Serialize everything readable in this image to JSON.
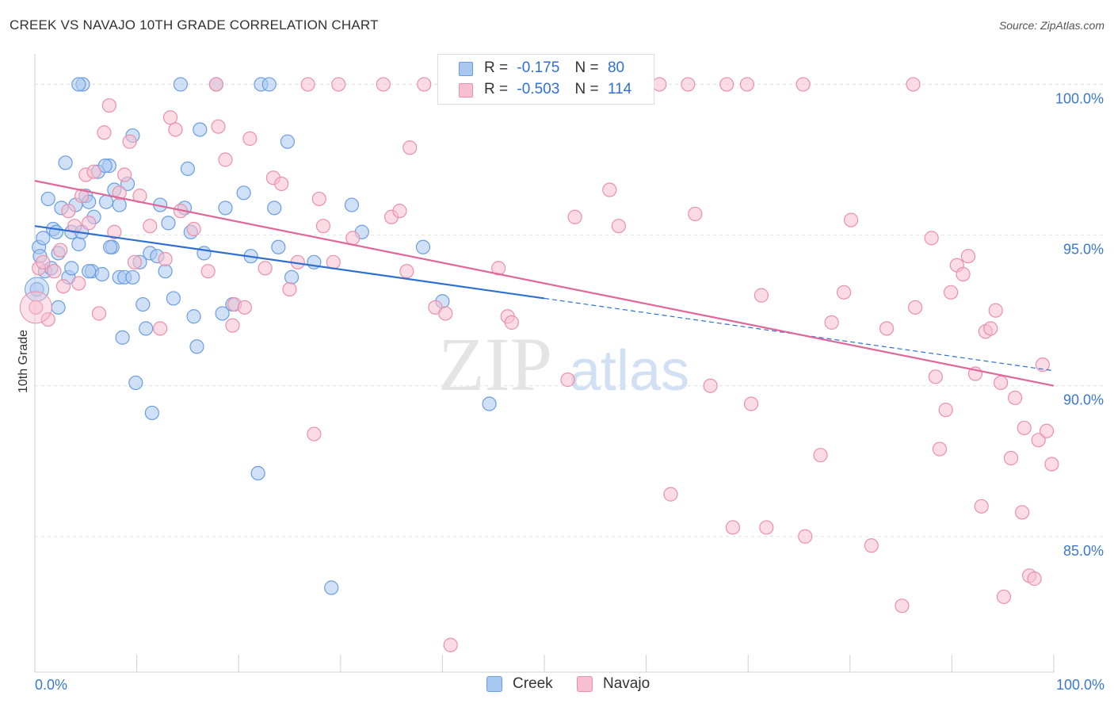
{
  "header": {
    "title": "CREEK VS NAVAJO 10TH GRADE CORRELATION CHART",
    "source": "Source: ZipAtlas.com"
  },
  "watermark": {
    "zip": "ZIP",
    "atlas": "atlas"
  },
  "legend_top": {
    "rows": [
      {
        "r_label": "R =",
        "r_value": "-0.175",
        "n_label": "N =",
        "n_value": "80"
      },
      {
        "r_label": "R =",
        "r_value": "-0.503",
        "n_label": "N =",
        "n_value": "114"
      }
    ]
  },
  "legend_bottom": {
    "items": [
      "Creek",
      "Navajo"
    ]
  },
  "colors": {
    "creek_fill": "#a9c8f0",
    "creek_stroke": "#6a9de0",
    "creek_line": "#2e6fd2",
    "navajo_fill": "#f7bfd0",
    "navajo_stroke": "#ea8fac",
    "navajo_line": "#e0679a",
    "axis_label": "#3a78d0",
    "grid": "#e2e2e2"
  },
  "chart_data": {
    "type": "scatter",
    "title": "CREEK VS NAVAJO 10TH GRADE CORRELATION CHART",
    "xlabel": "",
    "ylabel": "10th Grade",
    "xlim": [
      0,
      100
    ],
    "ylim": [
      80.5,
      100.8
    ],
    "x_tick_labels": [
      "0.0%",
      "100.0%"
    ],
    "y_ticks": [
      85,
      90,
      95,
      100
    ],
    "y_tick_labels": [
      "85.0%",
      "90.0%",
      "95.0%",
      "100.0%"
    ],
    "grid": true,
    "series": [
      {
        "name": "Creek",
        "r": -0.175,
        "n": 80,
        "trend": {
          "x": [
            0,
            50
          ],
          "y": [
            95.3,
            92.9
          ],
          "dashed_to": [
            100,
            90.5
          ]
        },
        "points": [
          [
            0.2,
            93.2
          ],
          [
            0.4,
            94.6
          ],
          [
            0.5,
            94.3
          ],
          [
            0.8,
            94.9
          ],
          [
            1.0,
            93.8
          ],
          [
            1.3,
            96.2
          ],
          [
            1.6,
            93.9
          ],
          [
            1.8,
            95.2
          ],
          [
            2.1,
            95.1
          ],
          [
            2.3,
            92.6
          ],
          [
            2.6,
            95.9
          ],
          [
            3.0,
            97.4
          ],
          [
            3.3,
            93.6
          ],
          [
            3.6,
            95.1
          ],
          [
            4.0,
            96.0
          ],
          [
            4.3,
            94.7
          ],
          [
            4.6,
            95.1
          ],
          [
            4.7,
            100.0
          ],
          [
            5.0,
            96.3
          ],
          [
            5.3,
            96.1
          ],
          [
            5.6,
            93.8
          ],
          [
            5.8,
            95.6
          ],
          [
            6.2,
            97.1
          ],
          [
            6.6,
            93.7
          ],
          [
            7.0,
            96.1
          ],
          [
            7.3,
            97.3
          ],
          [
            7.6,
            94.6
          ],
          [
            7.8,
            96.5
          ],
          [
            8.3,
            93.6
          ],
          [
            8.6,
            91.6
          ],
          [
            8.8,
            93.6
          ],
          [
            9.1,
            96.7
          ],
          [
            9.6,
            98.3
          ],
          [
            9.9,
            90.1
          ],
          [
            10.3,
            94.1
          ],
          [
            10.6,
            92.7
          ],
          [
            10.9,
            91.9
          ],
          [
            11.3,
            94.4
          ],
          [
            11.5,
            89.1
          ],
          [
            12.3,
            96.0
          ],
          [
            12.8,
            93.8
          ],
          [
            13.1,
            95.4
          ],
          [
            13.6,
            92.9
          ],
          [
            14.3,
            100.0
          ],
          [
            14.7,
            95.9
          ],
          [
            15.0,
            97.2
          ],
          [
            15.6,
            92.3
          ],
          [
            15.9,
            91.3
          ],
          [
            16.2,
            98.5
          ],
          [
            16.6,
            94.4
          ],
          [
            17.8,
            100.0
          ],
          [
            18.4,
            92.4
          ],
          [
            18.7,
            95.9
          ],
          [
            19.4,
            92.7
          ],
          [
            20.5,
            96.4
          ],
          [
            21.2,
            94.3
          ],
          [
            21.9,
            87.1
          ],
          [
            22.2,
            100.0
          ],
          [
            23.0,
            100.0
          ],
          [
            23.5,
            95.9
          ],
          [
            23.9,
            94.6
          ],
          [
            24.8,
            98.1
          ],
          [
            25.2,
            93.6
          ],
          [
            27.4,
            94.1
          ],
          [
            29.1,
            83.3
          ],
          [
            31.1,
            96.0
          ],
          [
            32.1,
            95.1
          ],
          [
            38.1,
            94.6
          ],
          [
            40.0,
            92.8
          ],
          [
            44.6,
            89.4
          ],
          [
            6.9,
            97.3
          ],
          [
            3.6,
            93.9
          ],
          [
            9.6,
            93.6
          ],
          [
            5.3,
            93.8
          ],
          [
            2.3,
            94.4
          ],
          [
            4.3,
            100.0
          ],
          [
            7.4,
            94.6
          ],
          [
            12.0,
            94.3
          ],
          [
            15.3,
            95.1
          ],
          [
            8.3,
            96.0
          ]
        ]
      },
      {
        "name": "Navajo",
        "r": -0.503,
        "n": 114,
        "trend": {
          "x": [
            0,
            100
          ],
          "y": [
            96.8,
            90.0
          ]
        },
        "points": [
          [
            0.1,
            92.6
          ],
          [
            0.4,
            93.9
          ],
          [
            1.3,
            92.2
          ],
          [
            1.9,
            93.8
          ],
          [
            2.5,
            94.5
          ],
          [
            2.8,
            93.3
          ],
          [
            3.3,
            95.8
          ],
          [
            3.9,
            95.3
          ],
          [
            4.3,
            93.4
          ],
          [
            4.6,
            96.3
          ],
          [
            5.0,
            97.0
          ],
          [
            5.3,
            95.4
          ],
          [
            5.8,
            97.1
          ],
          [
            6.3,
            92.4
          ],
          [
            6.8,
            98.4
          ],
          [
            7.3,
            99.3
          ],
          [
            7.8,
            95.1
          ],
          [
            8.3,
            96.4
          ],
          [
            8.8,
            97.0
          ],
          [
            9.3,
            98.1
          ],
          [
            9.8,
            94.1
          ],
          [
            10.3,
            96.3
          ],
          [
            11.3,
            95.3
          ],
          [
            12.3,
            91.9
          ],
          [
            12.8,
            94.2
          ],
          [
            13.3,
            98.9
          ],
          [
            13.8,
            98.5
          ],
          [
            14.3,
            95.8
          ],
          [
            15.6,
            95.2
          ],
          [
            17.0,
            93.8
          ],
          [
            17.8,
            100.0
          ],
          [
            18.0,
            98.6
          ],
          [
            18.7,
            97.5
          ],
          [
            19.4,
            92.0
          ],
          [
            19.6,
            92.7
          ],
          [
            20.6,
            92.6
          ],
          [
            21.1,
            98.2
          ],
          [
            22.6,
            93.9
          ],
          [
            23.4,
            96.9
          ],
          [
            24.2,
            96.7
          ],
          [
            25.0,
            93.2
          ],
          [
            25.8,
            94.1
          ],
          [
            26.8,
            100.0
          ],
          [
            27.4,
            88.4
          ],
          [
            27.9,
            96.2
          ],
          [
            28.3,
            95.3
          ],
          [
            29.3,
            94.1
          ],
          [
            29.8,
            100.0
          ],
          [
            31.2,
            94.9
          ],
          [
            34.2,
            100.0
          ],
          [
            35.0,
            95.6
          ],
          [
            35.8,
            95.8
          ],
          [
            36.5,
            93.8
          ],
          [
            36.8,
            97.9
          ],
          [
            38.2,
            100.0
          ],
          [
            39.3,
            92.6
          ],
          [
            40.3,
            92.4
          ],
          [
            40.8,
            81.4
          ],
          [
            45.5,
            93.9
          ],
          [
            46.4,
            92.3
          ],
          [
            46.8,
            92.1
          ],
          [
            52.3,
            90.2
          ],
          [
            53.0,
            95.6
          ],
          [
            54.1,
            100.0
          ],
          [
            56.4,
            96.5
          ],
          [
            57.3,
            95.3
          ],
          [
            61.3,
            100.0
          ],
          [
            62.4,
            86.4
          ],
          [
            64.1,
            100.0
          ],
          [
            64.8,
            95.7
          ],
          [
            66.3,
            90.0
          ],
          [
            67.9,
            100.0
          ],
          [
            68.5,
            85.3
          ],
          [
            69.9,
            100.0
          ],
          [
            70.3,
            89.4
          ],
          [
            71.3,
            93.0
          ],
          [
            71.8,
            85.3
          ],
          [
            75.4,
            100.0
          ],
          [
            75.6,
            85.0
          ],
          [
            77.1,
            87.7
          ],
          [
            78.2,
            92.1
          ],
          [
            79.4,
            93.1
          ],
          [
            80.1,
            95.5
          ],
          [
            82.1,
            84.7
          ],
          [
            83.6,
            91.9
          ],
          [
            85.1,
            82.7
          ],
          [
            86.2,
            100.0
          ],
          [
            86.4,
            92.6
          ],
          [
            88.0,
            94.9
          ],
          [
            88.4,
            90.3
          ],
          [
            88.8,
            87.9
          ],
          [
            89.4,
            89.2
          ],
          [
            89.9,
            93.1
          ],
          [
            90.5,
            94.0
          ],
          [
            91.1,
            93.7
          ],
          [
            91.6,
            94.3
          ],
          [
            92.3,
            90.4
          ],
          [
            92.9,
            86.0
          ],
          [
            93.3,
            91.8
          ],
          [
            93.8,
            91.9
          ],
          [
            94.3,
            92.5
          ],
          [
            94.8,
            90.1
          ],
          [
            95.1,
            83.0
          ],
          [
            95.8,
            87.6
          ],
          [
            96.2,
            89.6
          ],
          [
            96.9,
            85.8
          ],
          [
            97.1,
            88.6
          ],
          [
            97.6,
            83.7
          ],
          [
            98.1,
            83.6
          ],
          [
            98.5,
            88.2
          ],
          [
            98.9,
            90.7
          ],
          [
            99.3,
            88.5
          ],
          [
            99.8,
            87.4
          ],
          [
            0.8,
            94.1
          ]
        ]
      }
    ]
  }
}
